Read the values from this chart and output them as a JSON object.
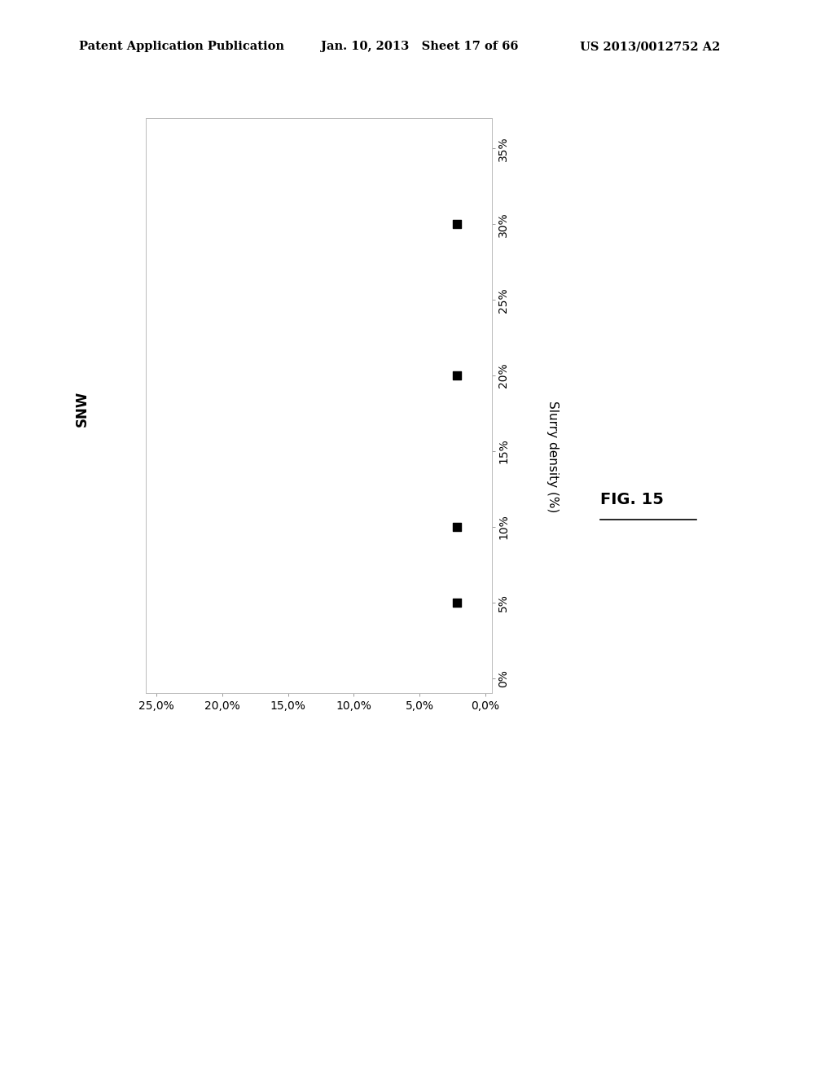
{
  "header_left": "Patent Application Publication",
  "header_middle": "Jan. 10, 2013   Sheet 17 of 66",
  "header_right": "US 2013/0012752 A2",
  "xlabel_rotated": "SNW",
  "ylabel": "Slurry density (%)",
  "fig_label": "FIG. 15",
  "x_ticks": [
    0.25,
    0.2,
    0.15,
    0.1,
    0.05,
    0.0
  ],
  "x_tick_labels": [
    "25,0%",
    "20,0%",
    "15,0%",
    "10,0%",
    "5,0%",
    "0,0%"
  ],
  "y_ticks": [
    0.0,
    0.05,
    0.1,
    0.15,
    0.2,
    0.25,
    0.3,
    0.35
  ],
  "y_tick_labels": [
    "0%",
    "5%",
    "10%",
    "15%",
    "20%",
    "25%",
    "30%",
    "35%"
  ],
  "xlim": [
    0.258,
    -0.005
  ],
  "ylim": [
    -0.01,
    0.37
  ],
  "data_x": [
    0.022,
    0.022,
    0.022,
    0.022
  ],
  "data_y": [
    0.05,
    0.1,
    0.2,
    0.3
  ],
  "marker": "s",
  "marker_color": "#000000",
  "marker_size": 7,
  "background_color": "#ffffff",
  "plot_bg": "#ffffff",
  "border_color": "#aaaaaa",
  "font_color": "#000000",
  "header_fontsize": 10.5,
  "tick_fontsize": 10,
  "label_fontsize": 11,
  "fig_label_fontsize": 14
}
